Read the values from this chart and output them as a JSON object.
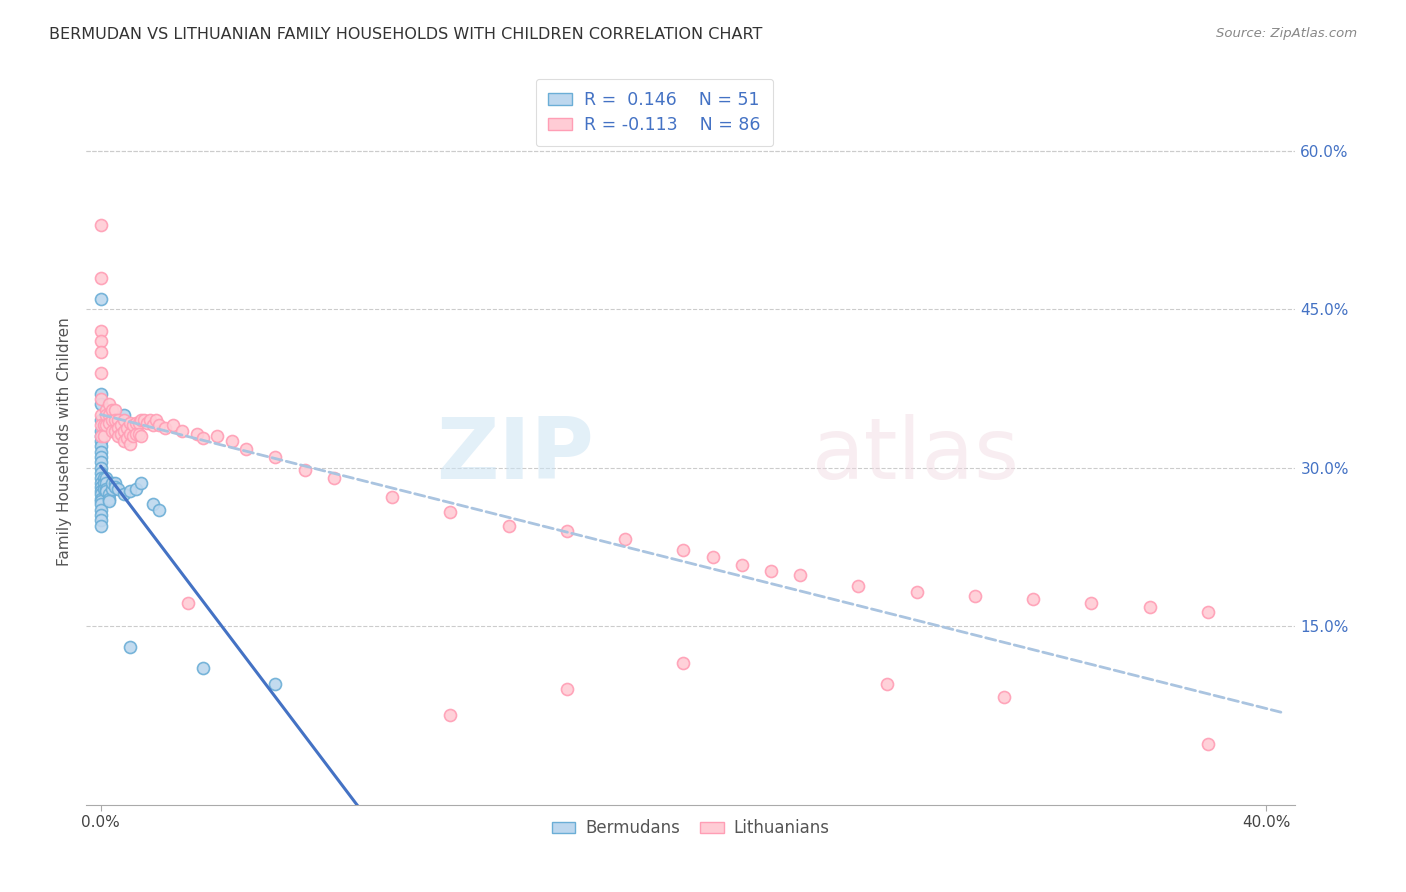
{
  "title": "BERMUDAN VS LITHUANIAN FAMILY HOUSEHOLDS WITH CHILDREN CORRELATION CHART",
  "source": "Source: ZipAtlas.com",
  "ylabel": "Family Households with Children",
  "legend_corr_labels": [
    "R =  0.146    N = 51",
    "R = -0.113    N = 86"
  ],
  "legend_group_labels": [
    "Bermudans",
    "Lithuanians"
  ],
  "bermudan_color": "#6baed6",
  "bermudan_fill": "#bdd7ee",
  "lithuanian_color": "#ff9eb5",
  "lithuanian_fill": "#ffccd5",
  "trend_blue": "#4472c4",
  "trend_dashed_color": "#aac4e0",
  "right_ytick_color": "#4472c4",
  "xlim": [
    -0.005,
    0.41
  ],
  "ylim": [
    -0.02,
    0.67
  ],
  "right_yticks": [
    0.15,
    0.3,
    0.45,
    0.6
  ],
  "right_ytick_labels": [
    "15.0%",
    "30.0%",
    "45.0%",
    "60.0%"
  ],
  "bermudan_x": [
    0.0,
    0.0,
    0.0,
    0.0,
    0.0,
    0.0,
    0.0,
    0.0,
    0.0,
    0.0,
    0.0,
    0.0,
    0.0,
    0.0,
    0.0,
    0.0,
    0.0,
    0.0,
    0.0,
    0.0,
    0.0,
    0.0,
    0.0,
    0.0,
    0.0,
    0.001,
    0.001,
    0.001,
    0.002,
    0.002,
    0.002,
    0.002,
    0.003,
    0.003,
    0.003,
    0.004,
    0.004,
    0.005,
    0.005,
    0.006,
    0.007,
    0.008,
    0.008,
    0.01,
    0.01,
    0.012,
    0.014,
    0.018,
    0.02,
    0.035,
    0.06
  ],
  "bermudan_y": [
    0.46,
    0.37,
    0.36,
    0.345,
    0.335,
    0.33,
    0.325,
    0.32,
    0.315,
    0.31,
    0.305,
    0.3,
    0.295,
    0.29,
    0.285,
    0.282,
    0.278,
    0.275,
    0.27,
    0.268,
    0.265,
    0.26,
    0.255,
    0.25,
    0.245,
    0.29,
    0.285,
    0.28,
    0.29,
    0.285,
    0.28,
    0.278,
    0.275,
    0.27,
    0.268,
    0.28,
    0.285,
    0.285,
    0.282,
    0.28,
    0.34,
    0.35,
    0.275,
    0.278,
    0.13,
    0.28,
    0.285,
    0.265,
    0.26,
    0.11,
    0.095
  ],
  "lithuanian_x": [
    0.0,
    0.0,
    0.0,
    0.0,
    0.0,
    0.0,
    0.0,
    0.0,
    0.0,
    0.0,
    0.001,
    0.001,
    0.002,
    0.002,
    0.002,
    0.003,
    0.003,
    0.003,
    0.004,
    0.004,
    0.004,
    0.005,
    0.005,
    0.005,
    0.006,
    0.006,
    0.006,
    0.007,
    0.007,
    0.008,
    0.008,
    0.008,
    0.009,
    0.009,
    0.01,
    0.01,
    0.01,
    0.011,
    0.011,
    0.012,
    0.012,
    0.013,
    0.013,
    0.014,
    0.014,
    0.015,
    0.016,
    0.017,
    0.018,
    0.019,
    0.02,
    0.022,
    0.025,
    0.028,
    0.03,
    0.033,
    0.035,
    0.04,
    0.045,
    0.05,
    0.06,
    0.07,
    0.08,
    0.1,
    0.12,
    0.14,
    0.16,
    0.18,
    0.2,
    0.21,
    0.22,
    0.23,
    0.24,
    0.26,
    0.28,
    0.3,
    0.32,
    0.34,
    0.36,
    0.38,
    0.12,
    0.16,
    0.2,
    0.27,
    0.31,
    0.38
  ],
  "lithuanian_y": [
    0.53,
    0.48,
    0.43,
    0.42,
    0.41,
    0.39,
    0.365,
    0.35,
    0.34,
    0.33,
    0.34,
    0.33,
    0.355,
    0.35,
    0.34,
    0.36,
    0.35,
    0.342,
    0.355,
    0.345,
    0.335,
    0.355,
    0.345,
    0.335,
    0.345,
    0.338,
    0.33,
    0.34,
    0.332,
    0.345,
    0.335,
    0.325,
    0.338,
    0.328,
    0.342,
    0.332,
    0.322,
    0.34,
    0.33,
    0.342,
    0.332,
    0.342,
    0.332,
    0.345,
    0.33,
    0.345,
    0.342,
    0.345,
    0.34,
    0.345,
    0.34,
    0.338,
    0.34,
    0.335,
    0.172,
    0.332,
    0.328,
    0.33,
    0.325,
    0.318,
    0.31,
    0.298,
    0.29,
    0.272,
    0.258,
    0.245,
    0.24,
    0.232,
    0.222,
    0.215,
    0.208,
    0.202,
    0.198,
    0.188,
    0.182,
    0.178,
    0.175,
    0.172,
    0.168,
    0.163,
    0.065,
    0.09,
    0.115,
    0.095,
    0.082,
    0.038
  ]
}
